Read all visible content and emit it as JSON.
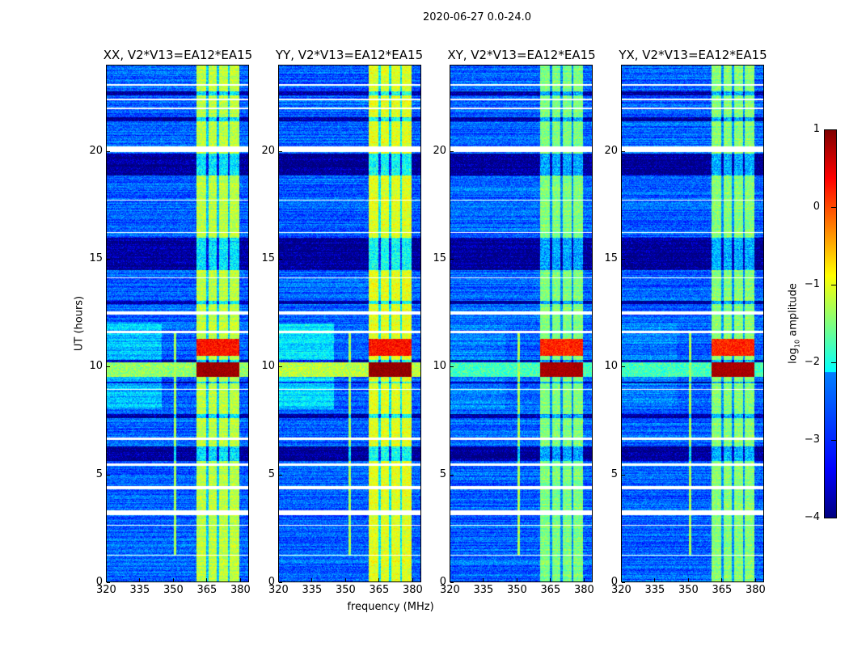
{
  "chart_data": [
    {
      "type": "heatmap",
      "suptitle": "2020-06-27 0.0-24.0",
      "xlabel": "frequency (MHz)",
      "ylabel": "UT (hours)",
      "xlim": [
        320,
        384
      ],
      "ylim": [
        0,
        24
      ],
      "xticks": [
        "320",
        "335",
        "350",
        "365",
        "380"
      ],
      "xtick_values": [
        320,
        335,
        350,
        365,
        380
      ],
      "yticks": [
        "0",
        "5",
        "10",
        "15",
        "20"
      ],
      "ytick_values": [
        0,
        5,
        10,
        15,
        20
      ],
      "colorbar": {
        "label_prefix": "log",
        "label_sub": "10",
        "label_suffix": " amplitude",
        "range": [
          -4,
          1
        ],
        "ticks": [
          "1",
          "0",
          "−1",
          "−2",
          "−3",
          "−4"
        ],
        "tick_values": [
          1,
          0,
          -1,
          -2,
          -3,
          -4
        ],
        "colormap": "jet"
      },
      "common_features": {
        "background_level": -2.9,
        "band_range_mhz": [
          360.5,
          380
        ],
        "band_dips_mhz": [
          365.5,
          370.3,
          375.2
        ],
        "flagged_hours": [
          [
            3.1,
            3.3
          ],
          [
            4.3,
            4.45
          ],
          [
            5.38,
            5.5
          ],
          [
            6.6,
            6.7
          ],
          [
            11.55,
            11.65
          ],
          [
            12.4,
            12.55
          ],
          [
            19.98,
            20.22
          ],
          [
            21.95,
            22.05
          ],
          [
            22.4,
            22.45
          ],
          [
            23.05,
            23.12
          ],
          [
            1.2,
            1.25
          ],
          [
            2.6,
            2.65
          ],
          [
            8.9,
            8.95
          ],
          [
            17.7,
            17.75
          ],
          [
            16.2,
            16.25
          ],
          [
            14.1,
            14.15
          ]
        ],
        "dark_hours": [
          [
            5.6,
            6.3
          ],
          [
            7.6,
            7.8
          ],
          [
            12.9,
            13.05
          ],
          [
            14.5,
            16.0
          ],
          [
            18.9,
            19.9
          ],
          [
            21.4,
            21.6
          ],
          [
            22.6,
            22.8
          ],
          [
            9.2,
            9.3
          ],
          [
            10.2,
            10.3
          ]
        ],
        "strong_hours": [
          [
            9.5,
            10.2
          ]
        ],
        "moderate_hours": [
          [
            10.5,
            11.3
          ]
        ]
      },
      "panels": [
        {
          "title": "XX, V2*V13=EA12*EA15",
          "band_level": -1.2,
          "strong_level": 0.85,
          "moderate_level": 0.3,
          "left_excess": 0.6,
          "rfi_line_mhz": 351,
          "rfi_hours": [
            1.2,
            11.6
          ]
        },
        {
          "title": "YY, V2*V13=EA12*EA15",
          "band_level": -1.0,
          "strong_level": 0.9,
          "moderate_level": 0.3,
          "left_excess": 0.8,
          "rfi_line_mhz": 352,
          "rfi_hours": [
            1.2,
            11.6
          ]
        },
        {
          "title": "XY, V2*V13=EA12*EA15",
          "band_level": -1.5,
          "strong_level": 0.8,
          "moderate_level": 0.2,
          "left_excess": 0.2,
          "rfi_line_mhz": 351,
          "rfi_hours": [
            1.2,
            11.6
          ]
        },
        {
          "title": "YX, V2*V13=EA12*EA15",
          "band_level": -1.45,
          "strong_level": 0.8,
          "moderate_level": 0.2,
          "left_excess": 0.2,
          "rfi_line_mhz": 351,
          "rfi_hours": [
            1.2,
            11.6
          ]
        }
      ]
    }
  ]
}
